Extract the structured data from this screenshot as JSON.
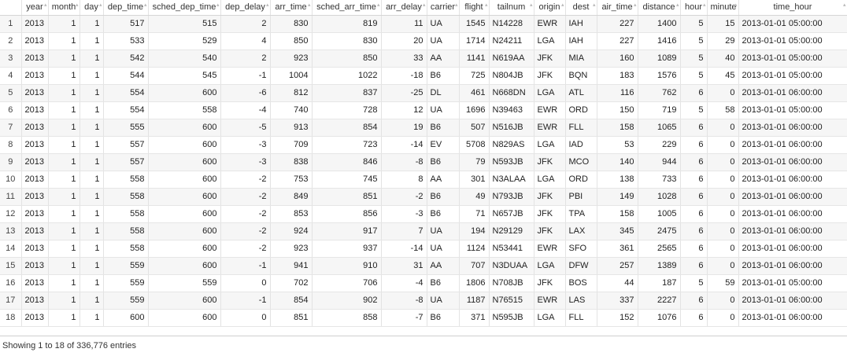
{
  "table": {
    "columns": [
      {
        "key": "rownum",
        "label": "",
        "align": "rn"
      },
      {
        "key": "year",
        "label": "year",
        "align": "txt"
      },
      {
        "key": "month",
        "label": "month",
        "align": "num"
      },
      {
        "key": "day",
        "label": "day",
        "align": "num"
      },
      {
        "key": "dep_time",
        "label": "dep_time",
        "align": "num"
      },
      {
        "key": "sched_dep_time",
        "label": "sched_dep_time",
        "align": "num"
      },
      {
        "key": "dep_delay",
        "label": "dep_delay",
        "align": "num"
      },
      {
        "key": "arr_time",
        "label": "arr_time",
        "align": "num"
      },
      {
        "key": "sched_arr_time",
        "label": "sched_arr_time",
        "align": "num"
      },
      {
        "key": "arr_delay",
        "label": "arr_delay",
        "align": "num"
      },
      {
        "key": "carrier",
        "label": "carrier",
        "align": "txt"
      },
      {
        "key": "flight",
        "label": "flight",
        "align": "num"
      },
      {
        "key": "tailnum",
        "label": "tailnum",
        "align": "txt"
      },
      {
        "key": "origin",
        "label": "origin",
        "align": "txt"
      },
      {
        "key": "dest",
        "label": "dest",
        "align": "txt"
      },
      {
        "key": "air_time",
        "label": "air_time",
        "align": "num"
      },
      {
        "key": "distance",
        "label": "distance",
        "align": "num"
      },
      {
        "key": "hour",
        "label": "hour",
        "align": "num"
      },
      {
        "key": "minute",
        "label": "minute",
        "align": "num"
      },
      {
        "key": "time_hour",
        "label": "time_hour",
        "align": "txt"
      }
    ],
    "rows": [
      [
        "1",
        "2013",
        "1",
        "1",
        "517",
        "515",
        "2",
        "830",
        "819",
        "11",
        "UA",
        "1545",
        "N14228",
        "EWR",
        "IAH",
        "227",
        "1400",
        "5",
        "15",
        "2013-01-01 05:00:00"
      ],
      [
        "2",
        "2013",
        "1",
        "1",
        "533",
        "529",
        "4",
        "850",
        "830",
        "20",
        "UA",
        "1714",
        "N24211",
        "LGA",
        "IAH",
        "227",
        "1416",
        "5",
        "29",
        "2013-01-01 05:00:00"
      ],
      [
        "3",
        "2013",
        "1",
        "1",
        "542",
        "540",
        "2",
        "923",
        "850",
        "33",
        "AA",
        "1141",
        "N619AA",
        "JFK",
        "MIA",
        "160",
        "1089",
        "5",
        "40",
        "2013-01-01 05:00:00"
      ],
      [
        "4",
        "2013",
        "1",
        "1",
        "544",
        "545",
        "-1",
        "1004",
        "1022",
        "-18",
        "B6",
        "725",
        "N804JB",
        "JFK",
        "BQN",
        "183",
        "1576",
        "5",
        "45",
        "2013-01-01 05:00:00"
      ],
      [
        "5",
        "2013",
        "1",
        "1",
        "554",
        "600",
        "-6",
        "812",
        "837",
        "-25",
        "DL",
        "461",
        "N668DN",
        "LGA",
        "ATL",
        "116",
        "762",
        "6",
        "0",
        "2013-01-01 06:00:00"
      ],
      [
        "6",
        "2013",
        "1",
        "1",
        "554",
        "558",
        "-4",
        "740",
        "728",
        "12",
        "UA",
        "1696",
        "N39463",
        "EWR",
        "ORD",
        "150",
        "719",
        "5",
        "58",
        "2013-01-01 05:00:00"
      ],
      [
        "7",
        "2013",
        "1",
        "1",
        "555",
        "600",
        "-5",
        "913",
        "854",
        "19",
        "B6",
        "507",
        "N516JB",
        "EWR",
        "FLL",
        "158",
        "1065",
        "6",
        "0",
        "2013-01-01 06:00:00"
      ],
      [
        "8",
        "2013",
        "1",
        "1",
        "557",
        "600",
        "-3",
        "709",
        "723",
        "-14",
        "EV",
        "5708",
        "N829AS",
        "LGA",
        "IAD",
        "53",
        "229",
        "6",
        "0",
        "2013-01-01 06:00:00"
      ],
      [
        "9",
        "2013",
        "1",
        "1",
        "557",
        "600",
        "-3",
        "838",
        "846",
        "-8",
        "B6",
        "79",
        "N593JB",
        "JFK",
        "MCO",
        "140",
        "944",
        "6",
        "0",
        "2013-01-01 06:00:00"
      ],
      [
        "10",
        "2013",
        "1",
        "1",
        "558",
        "600",
        "-2",
        "753",
        "745",
        "8",
        "AA",
        "301",
        "N3ALAA",
        "LGA",
        "ORD",
        "138",
        "733",
        "6",
        "0",
        "2013-01-01 06:00:00"
      ],
      [
        "11",
        "2013",
        "1",
        "1",
        "558",
        "600",
        "-2",
        "849",
        "851",
        "-2",
        "B6",
        "49",
        "N793JB",
        "JFK",
        "PBI",
        "149",
        "1028",
        "6",
        "0",
        "2013-01-01 06:00:00"
      ],
      [
        "12",
        "2013",
        "1",
        "1",
        "558",
        "600",
        "-2",
        "853",
        "856",
        "-3",
        "B6",
        "71",
        "N657JB",
        "JFK",
        "TPA",
        "158",
        "1005",
        "6",
        "0",
        "2013-01-01 06:00:00"
      ],
      [
        "13",
        "2013",
        "1",
        "1",
        "558",
        "600",
        "-2",
        "924",
        "917",
        "7",
        "UA",
        "194",
        "N29129",
        "JFK",
        "LAX",
        "345",
        "2475",
        "6",
        "0",
        "2013-01-01 06:00:00"
      ],
      [
        "14",
        "2013",
        "1",
        "1",
        "558",
        "600",
        "-2",
        "923",
        "937",
        "-14",
        "UA",
        "1124",
        "N53441",
        "EWR",
        "SFO",
        "361",
        "2565",
        "6",
        "0",
        "2013-01-01 06:00:00"
      ],
      [
        "15",
        "2013",
        "1",
        "1",
        "559",
        "600",
        "-1",
        "941",
        "910",
        "31",
        "AA",
        "707",
        "N3DUAA",
        "LGA",
        "DFW",
        "257",
        "1389",
        "6",
        "0",
        "2013-01-01 06:00:00"
      ],
      [
        "16",
        "2013",
        "1",
        "1",
        "559",
        "559",
        "0",
        "702",
        "706",
        "-4",
        "B6",
        "1806",
        "N708JB",
        "JFK",
        "BOS",
        "44",
        "187",
        "5",
        "59",
        "2013-01-01 05:00:00"
      ],
      [
        "17",
        "2013",
        "1",
        "1",
        "559",
        "600",
        "-1",
        "854",
        "902",
        "-8",
        "UA",
        "1187",
        "N76515",
        "EWR",
        "LAS",
        "337",
        "2227",
        "6",
        "0",
        "2013-01-01 06:00:00"
      ],
      [
        "18",
        "2013",
        "1",
        "1",
        "600",
        "600",
        "0",
        "851",
        "858",
        "-7",
        "B6",
        "371",
        "N595JB",
        "LGA",
        "FLL",
        "152",
        "1076",
        "6",
        "0",
        "2013-01-01 06:00:00"
      ]
    ]
  },
  "footer": {
    "info": "Showing 1 to 18 of 336,776 entries"
  },
  "icons": {
    "sort": "sort-arrows-icon"
  }
}
